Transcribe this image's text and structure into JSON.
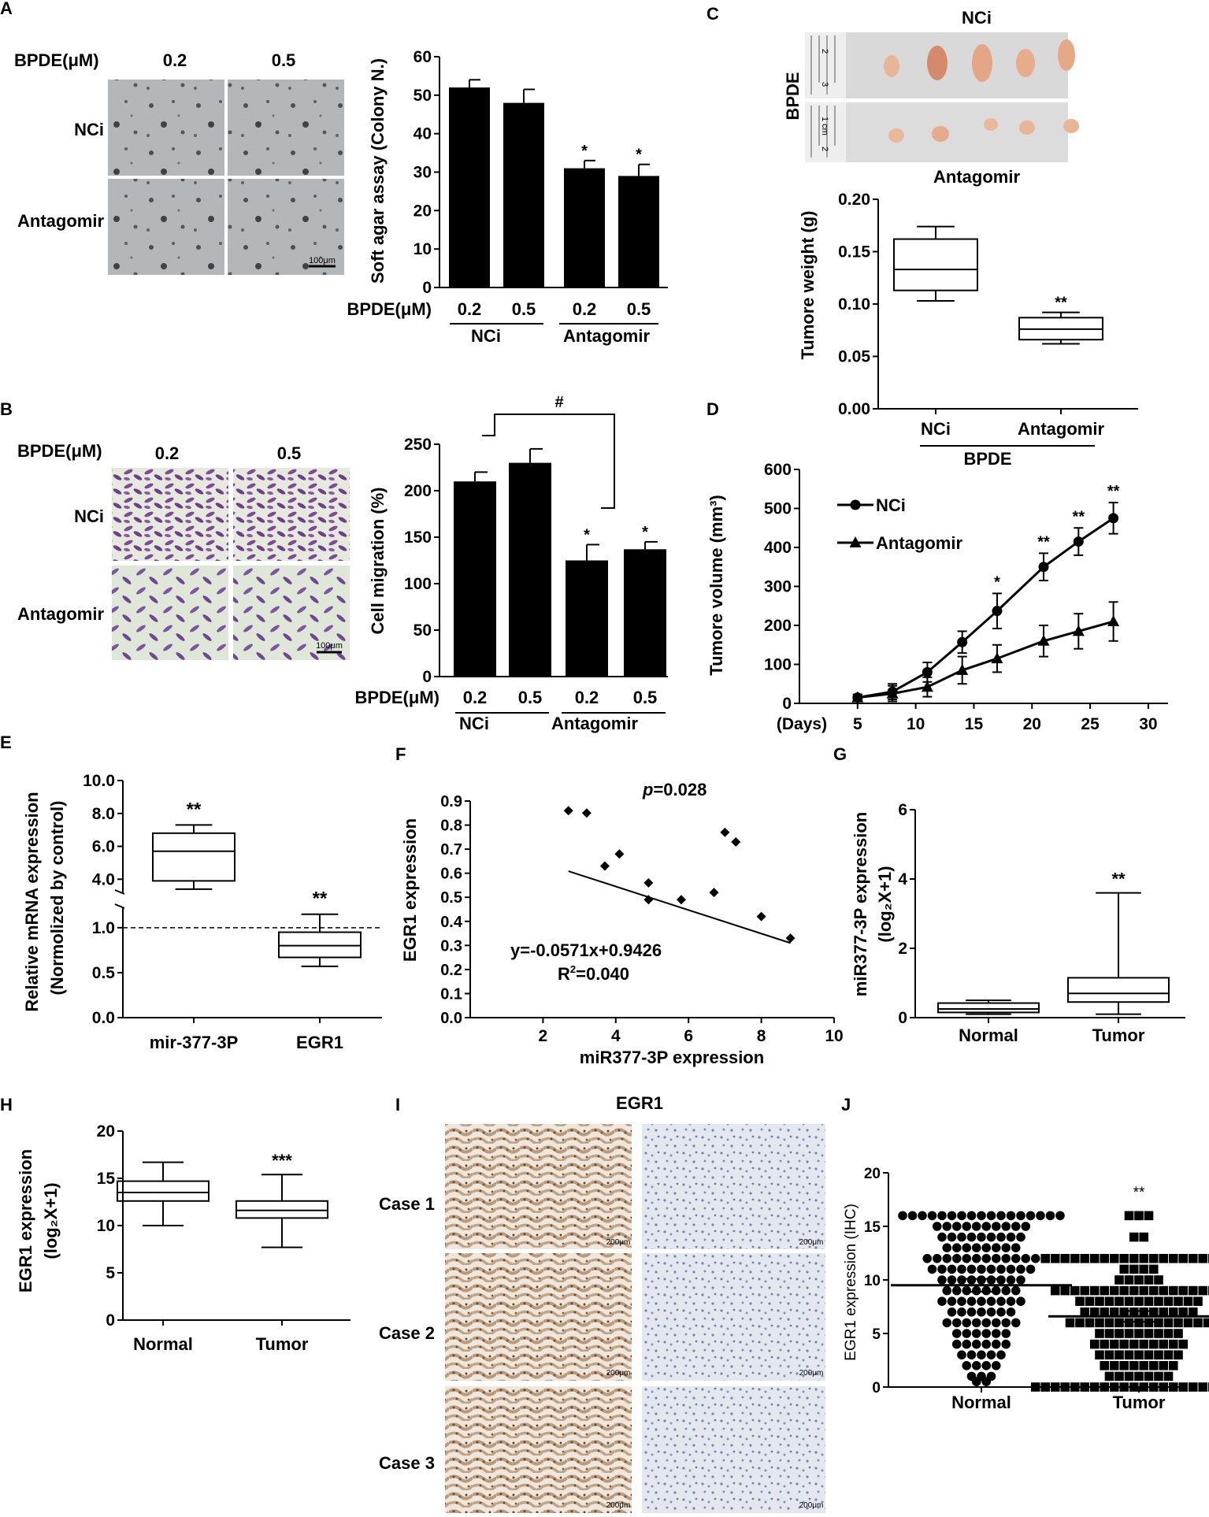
{
  "colors": {
    "ink": "#000000",
    "agar_bg": "#a9acae",
    "crystal_bg": "#f1f3ee",
    "crystal_cell": "#7a4a8e",
    "tumor_tissue": "#e8b89a",
    "ruler_bg": "#d8d8d8",
    "ihc_brown": "#8a5a2e",
    "ihc_blue": "#9fb3cf",
    "ihc_bg": "#efeae3"
  },
  "panel_letters": {
    "A": "A",
    "B": "B",
    "C": "C",
    "D": "D",
    "E": "E",
    "F": "F",
    "G": "G",
    "H": "H",
    "I": "I",
    "J": "J"
  },
  "panelA": {
    "dose_header": "BPDE(μM)",
    "dose1": "0.2",
    "dose2": "0.5",
    "row1": "NCi",
    "row2": "Antagomir",
    "scale": "100μm",
    "chart_data": {
      "type": "bar",
      "ylabel": "Soft agar assay (Colony N.)",
      "ylim": [
        0,
        60
      ],
      "yticks": [
        "0",
        "10",
        "20",
        "30",
        "40",
        "50",
        "60"
      ],
      "x_prefix": "BPDE(μM)",
      "categories": [
        "0.2",
        "0.5",
        "0.2",
        "0.5"
      ],
      "groups": [
        "NCi",
        "Antagomir"
      ],
      "values": [
        52,
        48,
        31,
        29
      ],
      "errors": [
        2,
        3.5,
        2,
        3
      ],
      "significance": [
        "",
        "",
        "*",
        "*"
      ]
    }
  },
  "panelB": {
    "dose_header": "BPDE(μM)",
    "dose1": "0.2",
    "dose2": "0.5",
    "row1": "NCi",
    "row2": "Antagomir",
    "scale": "100μm",
    "chart_data": {
      "type": "bar",
      "ylabel": "Cell migration (%)",
      "ylim": [
        0,
        250
      ],
      "yticks": [
        "0",
        "50",
        "100",
        "150",
        "200",
        "250"
      ],
      "x_prefix": "BPDE(μM)",
      "categories": [
        "0.2",
        "0.5",
        "0.2",
        "0.5"
      ],
      "groups": [
        "NCi",
        "Antagomir"
      ],
      "values": [
        210,
        230,
        125,
        137
      ],
      "errors": [
        10,
        15,
        17,
        8
      ],
      "significance": [
        "",
        "",
        "*",
        "*"
      ],
      "bracket_label": "#"
    }
  },
  "panelC": {
    "top_label": "NCi",
    "bottom_label": "Antagomir",
    "side_label": "BPDE",
    "ruler_text1": "2",
    "ruler_text2": "3",
    "ruler_text3": "1 cm",
    "ruler_text4": "2",
    "chart_data": {
      "type": "box",
      "ylabel": "Tumore weight (g)",
      "ylim": [
        0,
        0.2
      ],
      "yticks": [
        "0.00",
        "0.05",
        "0.10",
        "0.15",
        "0.20"
      ],
      "categories": [
        "NCi",
        "Antagomir"
      ],
      "group_label": "BPDE",
      "boxes": [
        {
          "min": 0.103,
          "q1": 0.113,
          "median": 0.133,
          "q3": 0.162,
          "max": 0.174
        },
        {
          "min": 0.062,
          "q1": 0.066,
          "median": 0.076,
          "q3": 0.087,
          "max": 0.092
        }
      ],
      "significance": [
        "",
        "**"
      ]
    }
  },
  "panelD": {
    "chart_data": {
      "type": "line",
      "ylabel": "Tumore volume (mm³)",
      "xlabel": "(Days)",
      "xlim": [
        5,
        30
      ],
      "ylim": [
        0,
        600
      ],
      "xticks": [
        "5",
        "10",
        "15",
        "20",
        "25",
        "30"
      ],
      "yticks": [
        "0",
        "100",
        "200",
        "300",
        "400",
        "500",
        "600"
      ],
      "x": [
        5,
        8,
        11,
        14,
        17,
        21,
        24,
        27
      ],
      "series": [
        {
          "name": "NCi",
          "marker": "circle",
          "values": [
            15,
            30,
            80,
            157,
            237,
            350,
            415,
            475
          ],
          "errors": [
            8,
            20,
            25,
            28,
            45,
            35,
            35,
            40
          ]
        },
        {
          "name": "Antagomir",
          "marker": "triangle",
          "values": [
            15,
            25,
            42,
            85,
            115,
            160,
            185,
            210
          ],
          "errors": [
            8,
            20,
            25,
            35,
            35,
            40,
            45,
            50
          ]
        }
      ],
      "significance": [
        "",
        "",
        "",
        "",
        "*",
        "**",
        "**",
        "**"
      ]
    }
  },
  "panelE": {
    "chart_data": {
      "type": "box",
      "ylabel_line1": "Relative mRNA expression",
      "ylabel_line2": "(Normolized by control)",
      "yticks_upper": [
        "4.0",
        "6.0",
        "8.0",
        "10.0"
      ],
      "yticks_lower": [
        "0.0",
        "0.5",
        "1.0"
      ],
      "categories": [
        "mir-377-3P",
        "EGR1"
      ],
      "boxes": [
        {
          "min": 3.4,
          "q1": 3.9,
          "median": 5.7,
          "q3": 6.8,
          "max": 7.3
        },
        {
          "min": 0.57,
          "q1": 0.67,
          "median": 0.8,
          "q3": 0.95,
          "max": 1.15
        }
      ],
      "reference_line": 1.0,
      "significance": [
        "**",
        "**"
      ]
    }
  },
  "panelF": {
    "chart_data": {
      "type": "scatter",
      "ylabel": "EGR1 expression",
      "xlabel": "miR377-3P expression",
      "xlim": [
        0,
        10
      ],
      "ylim": [
        0,
        0.9
      ],
      "xticks": [
        "2",
        "4",
        "6",
        "8",
        "10"
      ],
      "yticks": [
        "0.0",
        "0.1",
        "0.2",
        "0.3",
        "0.4",
        "0.5",
        "0.6",
        "0.7",
        "0.8",
        "0.9"
      ],
      "points": [
        [
          2.7,
          0.86
        ],
        [
          3.2,
          0.85
        ],
        [
          3.7,
          0.63
        ],
        [
          4.1,
          0.68
        ],
        [
          4.9,
          0.56
        ],
        [
          4.9,
          0.49
        ],
        [
          5.8,
          0.49
        ],
        [
          6.7,
          0.52
        ],
        [
          7.0,
          0.77
        ],
        [
          7.3,
          0.73
        ],
        [
          8.0,
          0.42
        ],
        [
          8.8,
          0.33
        ]
      ],
      "fit": {
        "slope": -0.0571,
        "intercept": 0.9426
      },
      "p_label": "p",
      "p_value": "=0.028",
      "equation": "y=-0.0571x+0.9426",
      "r2_label": "R",
      "r2_value": "=0.040"
    }
  },
  "panelG": {
    "chart_data": {
      "type": "box",
      "ylabel_line1": "miR377-3P expression",
      "ylabel_line2": "(log₂X+1)",
      "ylim": [
        0,
        6
      ],
      "yticks": [
        "0",
        "2",
        "4",
        "6"
      ],
      "categories": [
        "Normal",
        "Tumor"
      ],
      "boxes": [
        {
          "min": 0.1,
          "q1": 0.15,
          "median": 0.25,
          "q3": 0.42,
          "max": 0.5
        },
        {
          "min": 0.1,
          "q1": 0.45,
          "median": 0.7,
          "q3": 1.15,
          "max": 3.6
        }
      ],
      "significance": [
        "",
        "**"
      ]
    }
  },
  "panelH": {
    "chart_data": {
      "type": "box",
      "ylabel_line1": "EGR1 expression",
      "ylabel_line2": "(log₂X+1)",
      "ylim": [
        0,
        20
      ],
      "yticks": [
        "0",
        "5",
        "10",
        "15",
        "20"
      ],
      "categories": [
        "Normal",
        "Tumor"
      ],
      "boxes": [
        {
          "min": 10.0,
          "q1": 12.6,
          "median": 13.5,
          "q3": 14.7,
          "max": 16.7
        },
        {
          "min": 7.7,
          "q1": 10.8,
          "median": 11.6,
          "q3": 12.6,
          "max": 15.4
        }
      ],
      "significance": [
        "",
        "***"
      ]
    }
  },
  "panelI": {
    "title": "EGR1",
    "cases": [
      "Case 1",
      "Case 2",
      "Case 3"
    ],
    "scale": "200μm"
  },
  "panelJ": {
    "chart_data": {
      "type": "scatter",
      "ylabel": "EGR1 expression (IHC)",
      "ylim": [
        0,
        20
      ],
      "yticks": [
        "0",
        "5",
        "10",
        "15",
        "20"
      ],
      "categories": [
        "Normal",
        "Tumor"
      ],
      "means": [
        9.5,
        6.6
      ],
      "sem": [
        0.6,
        0.5
      ],
      "normal_counts": [
        [
          16,
          17
        ],
        [
          15,
          10
        ],
        [
          14,
          9
        ],
        [
          13,
          8
        ],
        [
          12,
          12
        ],
        [
          11,
          11
        ],
        [
          10,
          9
        ],
        [
          9,
          8
        ],
        [
          8,
          9
        ],
        [
          7,
          7
        ],
        [
          6,
          8
        ],
        [
          5,
          6
        ],
        [
          4,
          6
        ],
        [
          3,
          5
        ],
        [
          2,
          4
        ],
        [
          1,
          3
        ],
        [
          0.5,
          2
        ]
      ],
      "tumor_counts": [
        [
          16,
          3
        ],
        [
          14,
          2
        ],
        [
          12,
          20
        ],
        [
          11,
          4
        ],
        [
          10,
          5
        ],
        [
          9,
          18
        ],
        [
          8,
          13
        ],
        [
          7,
          12
        ],
        [
          6,
          15
        ],
        [
          5,
          9
        ],
        [
          4,
          10
        ],
        [
          3,
          9
        ],
        [
          2,
          8
        ],
        [
          1,
          7
        ],
        [
          0,
          22
        ]
      ],
      "significance": [
        "",
        "**"
      ]
    }
  }
}
